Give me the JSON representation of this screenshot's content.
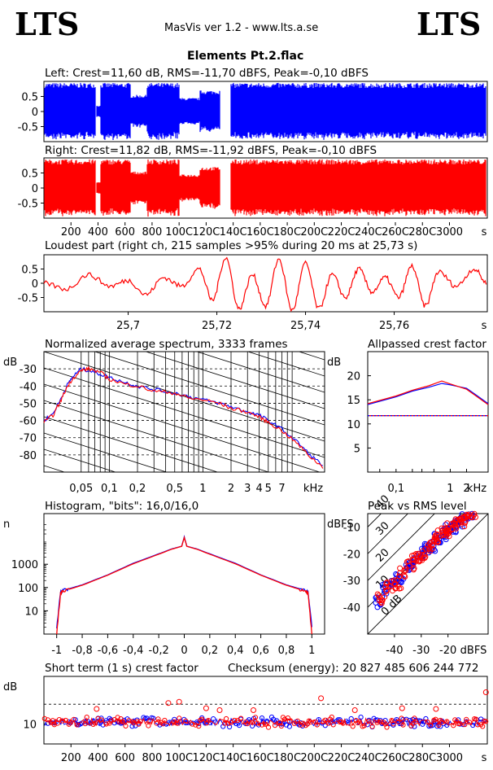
{
  "header": {
    "logo_left": "LTS",
    "logo_right": "LTS",
    "app_title": "MasVis ver 1.2 - www.lts.a.se",
    "file_title": "Elements Pt.2.flac"
  },
  "colors": {
    "left": "#0000ff",
    "right": "#ff0000",
    "grid": "#000000",
    "bg": "#ffffff"
  },
  "panels": {
    "left_waveform": "Left: Crest=11,60 dB, RMS=-11,70 dBFS, Peak=-0,10 dBFS",
    "right_waveform": "Right: Crest=11,82 dB, RMS=-11,92 dBFS, Peak=-0,10 dBFS",
    "loudest": "Loudest part (right ch, 215 samples >95% during 20 ms at 25,73 s)",
    "spectrum": "Normalized average spectrum, 3333 frames",
    "allpass": "Allpassed crest factor",
    "histogram": "Histogram, \"bits\": 16,0/16,0",
    "peak_rms": "Peak vs RMS level",
    "short_crest": "Short term (1 s) crest factor",
    "checksum": "Checksum (energy):  20 827 485 606 244 772"
  },
  "chart_data": [
    {
      "type": "area",
      "name": "left_waveform",
      "title": "Left: Crest=11,60 dB, RMS=-11,70 dBFS, Peak=-0,10 dBFS",
      "ylim": [
        -1,
        1
      ],
      "yticks": [
        "0.5",
        "0",
        "-0.5"
      ],
      "xlim": [
        0,
        3280
      ],
      "envelope_segments": [
        {
          "x": [
            0,
            380
          ],
          "peak": 0.95
        },
        {
          "x": [
            390,
            420
          ],
          "peak": 0.2
        },
        {
          "x": [
            420,
            640
          ],
          "peak": 0.95
        },
        {
          "x": [
            640,
            760
          ],
          "peak": 0.55
        },
        {
          "x": [
            760,
            1000
          ],
          "peak": 0.95
        },
        {
          "x": [
            1000,
            1150
          ],
          "peak": 0.45
        },
        {
          "x": [
            1150,
            1300
          ],
          "peak": 0.7
        },
        {
          "x": [
            1380,
            2000
          ],
          "peak": 0.95
        },
        {
          "x": [
            2000,
            2600
          ],
          "peak": 0.95
        },
        {
          "x": [
            2600,
            3270
          ],
          "peak": 0.95
        }
      ]
    },
    {
      "type": "area",
      "name": "right_waveform",
      "title": "Right: Crest=11,82 dB, RMS=-11,92 dBFS, Peak=-0,10 dBFS",
      "ylim": [
        -1,
        1
      ],
      "yticks": [
        "0.5",
        "0",
        "-0.5"
      ],
      "xticks": [
        "200",
        "400",
        "600",
        "800",
        "1000",
        "1200",
        "1400",
        "1600",
        "1800",
        "2000",
        "2200",
        "2400",
        "2600",
        "2800",
        "3000"
      ],
      "xtick_labels": [
        "200",
        "400",
        "600",
        "800",
        "100C",
        "120C",
        "140C",
        "160C",
        "180C",
        "200C",
        "220C",
        "240C",
        "260C",
        "280C",
        "3000"
      ],
      "xunit": "s",
      "xlim": [
        0,
        3280
      ]
    },
    {
      "type": "line",
      "name": "loudest_part",
      "title": "Loudest part (right ch, 215 samples >95% during 20 ms at 25,73 s)",
      "ylim": [
        -1,
        1
      ],
      "yticks": [
        "0.5",
        "0",
        "-0.5"
      ],
      "xlim": [
        25.681,
        25.781
      ],
      "xticks": [
        "25,7",
        "25,72",
        "25,74",
        "25,76"
      ],
      "xunit": "s",
      "series": [
        {
          "color": "#ff0000",
          "x": [
            25.681,
            25.686,
            25.691,
            25.696,
            25.7,
            25.704,
            25.708,
            25.712,
            25.716,
            25.719,
            25.722,
            25.725,
            25.728,
            25.731,
            25.734,
            25.737,
            25.74,
            25.743,
            25.746,
            25.749,
            25.752,
            25.755,
            25.758,
            25.761,
            25.764,
            25.767,
            25.77,
            25.774,
            25.778,
            25.781
          ],
          "y": [
            0.0,
            -0.2,
            0.3,
            -0.1,
            0.1,
            -0.4,
            0.2,
            -0.1,
            0.5,
            -0.6,
            0.9,
            -0.9,
            0.3,
            -0.8,
            0.85,
            -0.95,
            0.7,
            -0.9,
            0.3,
            -0.5,
            0.5,
            -0.3,
            0.2,
            -0.5,
            0.6,
            -0.8,
            0.4,
            -0.1,
            0.5,
            0.0
          ]
        }
      ]
    },
    {
      "type": "line",
      "name": "normalized_spectrum",
      "title": "Normalized average spectrum, 3333 frames",
      "ylabel": "dB",
      "xunit": "kHz",
      "xscale": "log",
      "xlim": [
        0.02,
        20
      ],
      "ylim": [
        -90,
        -20
      ],
      "yticks": [
        "-30",
        "-40",
        "-50",
        "-60",
        "-70",
        "-80"
      ],
      "xticks": [
        "0,05",
        "0,1",
        "0,2",
        "0,5",
        "1",
        "2",
        "3",
        "4",
        "5",
        "7"
      ],
      "xtick_values": [
        0.05,
        0.1,
        0.2,
        0.5,
        1,
        2,
        3,
        4,
        5,
        7
      ],
      "series": [
        {
          "color": "#0000ff",
          "x": [
            0.02,
            0.025,
            0.03,
            0.035,
            0.04,
            0.05,
            0.06,
            0.08,
            0.1,
            0.15,
            0.2,
            0.3,
            0.5,
            0.7,
            1,
            1.5,
            2,
            3,
            4,
            5,
            7,
            10,
            14,
            20
          ],
          "y": [
            -60,
            -56,
            -48,
            -40,
            -35,
            -30,
            -31,
            -33,
            -35,
            -38,
            -40,
            -42,
            -44,
            -46,
            -48,
            -50,
            -52,
            -55,
            -57,
            -60,
            -65,
            -72,
            -80,
            -87
          ]
        },
        {
          "color": "#ff0000",
          "x": [
            0.02,
            0.025,
            0.03,
            0.035,
            0.04,
            0.05,
            0.06,
            0.08,
            0.1,
            0.15,
            0.2,
            0.3,
            0.5,
            0.7,
            1,
            1.5,
            2,
            3,
            4,
            5,
            7,
            10,
            14,
            20
          ],
          "y": [
            -61,
            -57,
            -49,
            -41,
            -36,
            -31,
            -30,
            -32,
            -36,
            -39,
            -40,
            -43,
            -44,
            -47,
            -48,
            -50,
            -53,
            -55,
            -58,
            -61,
            -66,
            -73,
            -81,
            -88
          ]
        }
      ]
    },
    {
      "type": "line",
      "name": "allpassed_crest",
      "title": "Allpassed crest factor",
      "ylabel": "dB",
      "xunit": "kHz",
      "xscale": "log",
      "xlim": [
        0.03,
        5
      ],
      "ylim": [
        0,
        25
      ],
      "yticks": [
        "20",
        "15",
        "10",
        "5"
      ],
      "xticks": [
        "0,1",
        "1",
        "2"
      ],
      "xtick_values": [
        0.1,
        1,
        2
      ],
      "reference_level": 11.7,
      "series": [
        {
          "color": "#0000ff",
          "x": [
            0.03,
            0.1,
            0.2,
            0.4,
            0.7,
            1,
            2,
            3,
            5
          ],
          "y": [
            14,
            15.6,
            16.8,
            17.6,
            18.4,
            18.1,
            17.4,
            16,
            14.2
          ]
        },
        {
          "color": "#ff0000",
          "x": [
            0.03,
            0.1,
            0.2,
            0.4,
            0.7,
            1,
            2,
            3,
            5
          ],
          "y": [
            14.2,
            15.8,
            17,
            17.9,
            18.9,
            18.3,
            17.2,
            15.8,
            14
          ]
        }
      ]
    },
    {
      "type": "line",
      "name": "histogram",
      "title": "Histogram, \"bits\": 16,0/16,0",
      "ylabel": "n",
      "yscale": "log",
      "xlim": [
        -1.1,
        1.1
      ],
      "ylim": [
        1,
        150000
      ],
      "yticks": [
        "1000",
        "100",
        "10"
      ],
      "ytick_values": [
        1000,
        100,
        10
      ],
      "xticks": [
        "-1",
        "-0,8",
        "-0,6",
        "-0,4",
        "-0,2",
        "0",
        "0,2",
        "0,4",
        "0,6",
        "0,8",
        "1"
      ],
      "xtick_values": [
        -1,
        -0.8,
        -0.6,
        -0.4,
        -0.2,
        0,
        0.2,
        0.4,
        0.6,
        0.8,
        1
      ],
      "series": [
        {
          "color": "#0000ff",
          "x": [
            -1,
            -0.97,
            -0.95,
            -0.9,
            -0.8,
            -0.6,
            -0.4,
            -0.2,
            -0.1,
            -0.02,
            0,
            0.02,
            0.1,
            0.2,
            0.4,
            0.6,
            0.8,
            0.9,
            0.95,
            0.97,
            1
          ],
          "y": [
            2,
            60,
            80,
            90,
            130,
            350,
            1100,
            2800,
            4500,
            6000,
            15000,
            6000,
            4500,
            2800,
            1100,
            350,
            130,
            90,
            80,
            60,
            2
          ]
        },
        {
          "color": "#ff0000",
          "x": [
            -1,
            -0.97,
            -0.95,
            -0.9,
            -0.8,
            -0.6,
            -0.4,
            -0.2,
            -0.1,
            -0.02,
            0,
            0.02,
            0.1,
            0.2,
            0.4,
            0.6,
            0.8,
            0.9,
            0.95,
            0.97,
            1
          ],
          "y": [
            1,
            55,
            75,
            85,
            125,
            340,
            1050,
            2700,
            4400,
            5900,
            14000,
            5900,
            4400,
            2700,
            1050,
            340,
            125,
            85,
            75,
            55,
            1
          ]
        }
      ]
    },
    {
      "type": "scatter",
      "name": "peak_vs_rms",
      "title": "Peak vs RMS level",
      "ylabel": "dBFS",
      "xlabel": "dBFS",
      "xlim": [
        -50,
        -5
      ],
      "ylim": [
        -50,
        -5
      ],
      "yticks": [
        "-10",
        "-20",
        "-30",
        "-40"
      ],
      "xticks": [
        "-40",
        "-30",
        "-20"
      ],
      "diagonal_labels": [
        "0 dB",
        "10",
        "20",
        "30",
        "40"
      ],
      "series": [
        {
          "color": "#0000ff",
          "x": [
            -46,
            -43,
            -40,
            -38,
            -35,
            -33,
            -30,
            -28,
            -26,
            -24,
            -22,
            -20,
            -18,
            -16,
            -14,
            -12
          ],
          "y": [
            -38,
            -33,
            -30,
            -29,
            -25,
            -23,
            -20,
            -18,
            -17,
            -14,
            -13,
            -11,
            -10,
            -8,
            -7,
            -6
          ]
        },
        {
          "color": "#ff0000",
          "x": [
            -45,
            -42,
            -39,
            -37,
            -34,
            -32,
            -29,
            -27,
            -25,
            -23,
            -21,
            -19,
            -17,
            -15,
            -13,
            -11
          ],
          "y": [
            -37,
            -32,
            -31,
            -27,
            -24,
            -22,
            -21,
            -17,
            -15,
            -13,
            -12,
            -10,
            -9,
            -8,
            -6,
            -5
          ]
        }
      ]
    },
    {
      "type": "scatter",
      "name": "short_term_crest",
      "title": "Short term (1 s) crest factor",
      "ylabel": "dB",
      "yticks": [
        "10"
      ],
      "xlim": [
        0,
        3280
      ],
      "ylim": [
        5,
        22
      ],
      "reference_level": 15,
      "xtick_labels": [
        "200",
        "400",
        "600",
        "800",
        "100C",
        "120C",
        "140C",
        "160C",
        "180C",
        "200C",
        "220C",
        "240C",
        "260C",
        "280C",
        "3000"
      ],
      "xticks": [
        "200",
        "400",
        "600",
        "800",
        "1000",
        "1200",
        "1400",
        "1600",
        "1800",
        "2000",
        "2200",
        "2400",
        "2600",
        "2800",
        "3000"
      ],
      "xunit": "s",
      "mean_value": 10.5,
      "outliers": [
        [
          390,
          13.8
        ],
        [
          920,
          15.3
        ],
        [
          1000,
          15.6
        ],
        [
          1200,
          14
        ],
        [
          1300,
          13.5
        ],
        [
          1550,
          13.5
        ],
        [
          2050,
          16.5
        ],
        [
          2300,
          13.5
        ],
        [
          2650,
          14
        ],
        [
          2900,
          13.8
        ],
        [
          3270,
          18
        ]
      ]
    }
  ]
}
